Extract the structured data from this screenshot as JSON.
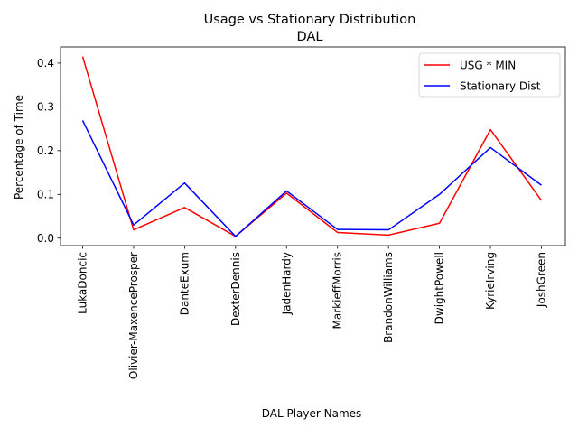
{
  "chart_data": {
    "type": "line",
    "title": "Usage vs Stationary Distribution",
    "subtitle": "DAL",
    "xlabel": "DAL Player Names",
    "ylabel": "Percentage of Time",
    "categories": [
      "LukaDoncic",
      "Olivier-MaxenceProsper",
      "DanteExum",
      "DexterDennis",
      "JadenHardy",
      "MarkieffMorris",
      "BrandonWilliams",
      "DwightPowell",
      "KyrieIrving",
      "JoshGreen"
    ],
    "series": [
      {
        "name": "USG * MIN",
        "color": "#ff0000",
        "values": [
          0.415,
          0.019,
          0.07,
          0.004,
          0.103,
          0.013,
          0.007,
          0.034,
          0.248,
          0.086
        ]
      },
      {
        "name": "Stationary Dist",
        "color": "#0000ff",
        "values": [
          0.269,
          0.03,
          0.126,
          0.004,
          0.108,
          0.02,
          0.019,
          0.1,
          0.207,
          0.121
        ]
      }
    ],
    "ylim": [
      -0.017,
      0.437
    ],
    "yticks": [
      0.0,
      0.1,
      0.2,
      0.3,
      0.4
    ],
    "ytick_labels": [
      "0.0",
      "0.1",
      "0.2",
      "0.3",
      "0.4"
    ],
    "grid": false,
    "legend_position": "upper right"
  }
}
